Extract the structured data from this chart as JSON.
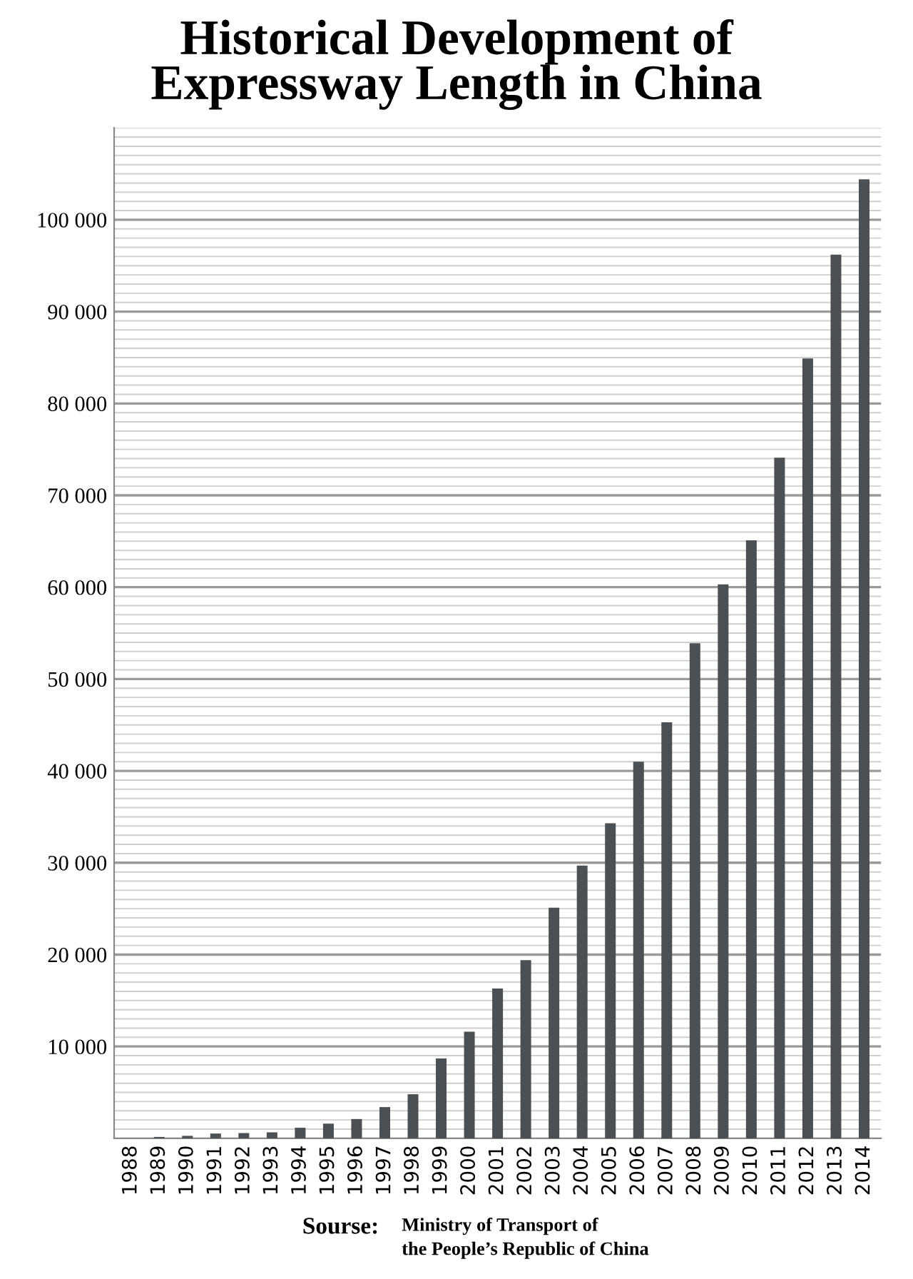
{
  "chart_data": {
    "type": "bar",
    "title": "Historical Development of\nExpressway Length in China",
    "categories": [
      "1988",
      "1989",
      "1990",
      "1991",
      "1992",
      "1993",
      "1994",
      "1995",
      "1996",
      "1997",
      "1998",
      "1999",
      "2000",
      "2001",
      "2002",
      "2003",
      "2004",
      "2005",
      "2006",
      "2007",
      "2008",
      "2009",
      "2010",
      "2011",
      "2012",
      "2013",
      "2014"
    ],
    "values": [
      0,
      150,
      270,
      520,
      570,
      650,
      1150,
      1600,
      2100,
      3400,
      4800,
      8700,
      11600,
      16300,
      19400,
      25100,
      29700,
      34300,
      41000,
      45300,
      53900,
      60300,
      65100,
      74100,
      84900,
      96200,
      104400
    ],
    "color": "#4a5054",
    "ylim": [
      0,
      110000
    ],
    "yticks": [
      {
        "value": 1000,
        "label": null
      },
      {
        "value": 2000,
        "label": null
      },
      {
        "value": 3000,
        "label": null
      },
      {
        "value": 4000,
        "label": null
      },
      {
        "value": 5000,
        "label": null
      },
      {
        "value": 6000,
        "label": null
      },
      {
        "value": 7000,
        "label": null
      },
      {
        "value": 8000,
        "label": null
      },
      {
        "value": 9000,
        "label": null
      },
      {
        "value": 10000,
        "label": "10 000"
      },
      {
        "value": 11000,
        "label": null
      },
      {
        "value": 12000,
        "label": null
      },
      {
        "value": 13000,
        "label": null
      },
      {
        "value": 14000,
        "label": null
      },
      {
        "value": 15000,
        "label": null
      },
      {
        "value": 16000,
        "label": null
      },
      {
        "value": 17000,
        "label": null
      },
      {
        "value": 18000,
        "label": null
      },
      {
        "value": 19000,
        "label": null
      },
      {
        "value": 20000,
        "label": "20 000"
      },
      {
        "value": 21000,
        "label": null
      },
      {
        "value": 22000,
        "label": null
      },
      {
        "value": 23000,
        "label": null
      },
      {
        "value": 24000,
        "label": null
      },
      {
        "value": 25000,
        "label": null
      },
      {
        "value": 26000,
        "label": null
      },
      {
        "value": 27000,
        "label": null
      },
      {
        "value": 28000,
        "label": null
      },
      {
        "value": 29000,
        "label": null
      },
      {
        "value": 30000,
        "label": "30 000"
      },
      {
        "value": 31000,
        "label": null
      },
      {
        "value": 32000,
        "label": null
      },
      {
        "value": 33000,
        "label": null
      },
      {
        "value": 34000,
        "label": null
      },
      {
        "value": 35000,
        "label": null
      },
      {
        "value": 36000,
        "label": null
      },
      {
        "value": 37000,
        "label": null
      },
      {
        "value": 38000,
        "label": null
      },
      {
        "value": 39000,
        "label": null
      },
      {
        "value": 40000,
        "label": "40 000"
      },
      {
        "value": 41000,
        "label": null
      },
      {
        "value": 42000,
        "label": null
      },
      {
        "value": 43000,
        "label": null
      },
      {
        "value": 44000,
        "label": null
      },
      {
        "value": 45000,
        "label": null
      },
      {
        "value": 46000,
        "label": null
      },
      {
        "value": 47000,
        "label": null
      },
      {
        "value": 48000,
        "label": null
      },
      {
        "value": 49000,
        "label": null
      },
      {
        "value": 50000,
        "label": "50 000"
      },
      {
        "value": 51000,
        "label": null
      },
      {
        "value": 52000,
        "label": null
      },
      {
        "value": 53000,
        "label": null
      },
      {
        "value": 54000,
        "label": null
      },
      {
        "value": 55000,
        "label": null
      },
      {
        "value": 56000,
        "label": null
      },
      {
        "value": 57000,
        "label": null
      },
      {
        "value": 58000,
        "label": null
      },
      {
        "value": 59000,
        "label": null
      },
      {
        "value": 60000,
        "label": "60 000"
      },
      {
        "value": 61000,
        "label": null
      },
      {
        "value": 62000,
        "label": null
      },
      {
        "value": 63000,
        "label": null
      },
      {
        "value": 64000,
        "label": null
      },
      {
        "value": 65000,
        "label": null
      },
      {
        "value": 66000,
        "label": null
      },
      {
        "value": 67000,
        "label": null
      },
      {
        "value": 68000,
        "label": null
      },
      {
        "value": 69000,
        "label": null
      },
      {
        "value": 70000,
        "label": "70 000"
      },
      {
        "value": 71000,
        "label": null
      },
      {
        "value": 72000,
        "label": null
      },
      {
        "value": 73000,
        "label": null
      },
      {
        "value": 74000,
        "label": null
      },
      {
        "value": 75000,
        "label": null
      },
      {
        "value": 76000,
        "label": null
      },
      {
        "value": 77000,
        "label": null
      },
      {
        "value": 78000,
        "label": null
      },
      {
        "value": 79000,
        "label": null
      },
      {
        "value": 80000,
        "label": "80 000"
      },
      {
        "value": 81000,
        "label": null
      },
      {
        "value": 82000,
        "label": null
      },
      {
        "value": 83000,
        "label": null
      },
      {
        "value": 84000,
        "label": null
      },
      {
        "value": 85000,
        "label": null
      },
      {
        "value": 86000,
        "label": null
      },
      {
        "value": 87000,
        "label": null
      },
      {
        "value": 88000,
        "label": null
      },
      {
        "value": 89000,
        "label": null
      },
      {
        "value": 90000,
        "label": "90 000"
      },
      {
        "value": 91000,
        "label": null
      },
      {
        "value": 92000,
        "label": null
      },
      {
        "value": 93000,
        "label": null
      },
      {
        "value": 94000,
        "label": null
      },
      {
        "value": 95000,
        "label": null
      },
      {
        "value": 96000,
        "label": null
      },
      {
        "value": 97000,
        "label": null
      },
      {
        "value": 98000,
        "label": null
      },
      {
        "value": 99000,
        "label": null
      },
      {
        "value": 100000,
        "label": "100 000"
      },
      {
        "value": 101000,
        "label": null
      },
      {
        "value": 102000,
        "label": null
      },
      {
        "value": 103000,
        "label": null
      },
      {
        "value": 104000,
        "label": null
      },
      {
        "value": 105000,
        "label": null
      },
      {
        "value": 106000,
        "label": null
      },
      {
        "value": 107000,
        "label": null
      },
      {
        "value": 108000,
        "label": null
      },
      {
        "value": 109000,
        "label": null
      },
      {
        "value": 110000,
        "label": null
      }
    ],
    "grid": "y",
    "legend": false,
    "annotations": [
      "Sourse:",
      "Ministry of Transport of\nthe People’s Republic of China"
    ]
  }
}
